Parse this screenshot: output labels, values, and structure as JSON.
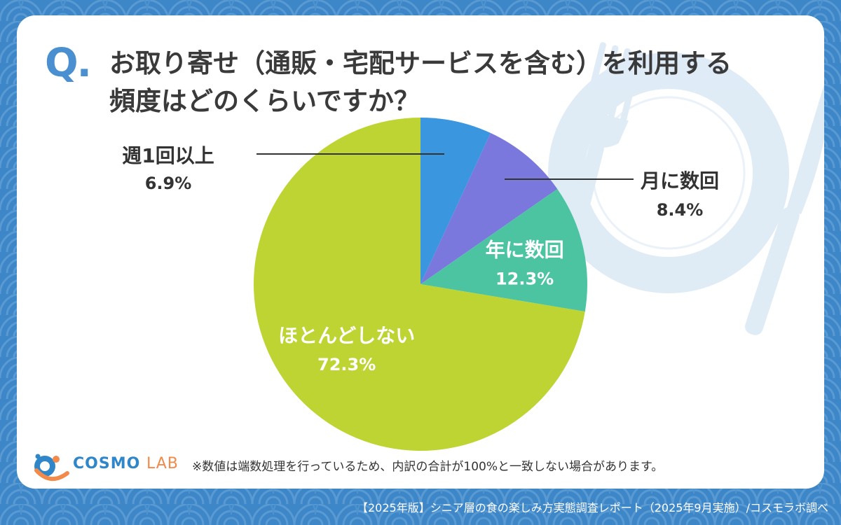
{
  "question": {
    "mark": "Q.",
    "line1": "お取り寄せ（通販・宅配サービスを含む）を利用する",
    "line2": "頻度はどのくらいですか？"
  },
  "chart_data": {
    "type": "pie",
    "start": "12 o'clock",
    "direction": "clockwise",
    "slices": [
      {
        "label": "週1回以上",
        "value": 6.9,
        "value_text": "6.9%",
        "color": "#3b96e0"
      },
      {
        "label": "月に数回",
        "value": 8.4,
        "value_text": "8.4%",
        "color": "#7a78dd"
      },
      {
        "label": "年に数回",
        "value": 12.3,
        "value_text": "12.3%",
        "color": "#4cc4a2"
      },
      {
        "label": "ほとんどしない",
        "value": 72.3,
        "value_text": "72.3%",
        "color": "#bed432"
      }
    ]
  },
  "note": "※数値は端数処理を行っているため、内訳の合計が100%と一致しない場合があります。",
  "logo": {
    "cosmo": "COSMO",
    "lab": "LAB"
  },
  "footer": "【2025年版】シニア層の食の楽しみ方実態調査レポート（2025年9月実施）/コスモラボ調べ",
  "colors": {
    "background": "#3d86c8",
    "card": "#ffffff",
    "accent": "#4a8fd0",
    "text": "#3a3a3a"
  }
}
